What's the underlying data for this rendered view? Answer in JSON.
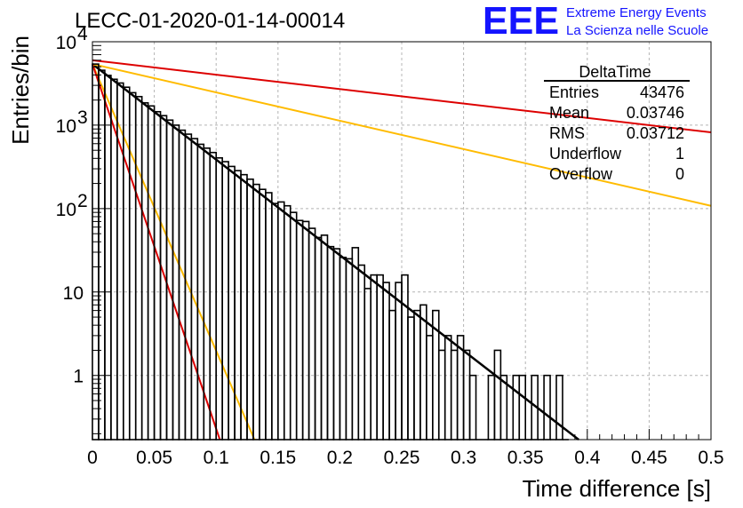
{
  "header": {
    "run_title": "LECC-01-2020-01-14-00014",
    "logo_text": "EEE",
    "logo_line1": "Extreme Energy Events",
    "logo_line2": "La Scienza nelle Scuole",
    "logo_color": "#1414ff"
  },
  "stats_box": {
    "title": "DeltaTime",
    "rows": [
      {
        "label": "Entries",
        "value": "43476"
      },
      {
        "label": "Mean",
        "value": "0.03746"
      },
      {
        "label": "RMS",
        "value": "0.03712"
      },
      {
        "label": "Underflow",
        "value": "1"
      },
      {
        "label": "Overflow",
        "value": "0"
      }
    ]
  },
  "chart_data": {
    "type": "histogram",
    "xlabel": "Time difference [s]",
    "ylabel": "Entries/bin",
    "xlim": [
      0,
      0.5
    ],
    "ylim": [
      0.17,
      10000
    ],
    "y_scale": "log",
    "grid": true,
    "x_ticks": [
      "0",
      "0.05",
      "0.1",
      "0.15",
      "0.2",
      "0.25",
      "0.3",
      "0.35",
      "0.4",
      "0.45",
      "0.5"
    ],
    "y_ticks": [
      {
        "value": 1,
        "label": "1"
      },
      {
        "value": 10,
        "label": "10"
      },
      {
        "value": 100,
        "label": "10",
        "exp": "2"
      },
      {
        "value": 1000,
        "label": "10",
        "exp": "3"
      },
      {
        "value": 10000,
        "label": "10",
        "exp": "4"
      }
    ],
    "bin_width": 0.005,
    "bins": [
      {
        "x": 0.0,
        "y": 5400
      },
      {
        "x": 0.005,
        "y": 4550
      },
      {
        "x": 0.01,
        "y": 3950
      },
      {
        "x": 0.015,
        "y": 3550
      },
      {
        "x": 0.02,
        "y": 3200
      },
      {
        "x": 0.025,
        "y": 2850
      },
      {
        "x": 0.03,
        "y": 2450
      },
      {
        "x": 0.035,
        "y": 2200
      },
      {
        "x": 0.04,
        "y": 1850
      },
      {
        "x": 0.045,
        "y": 1700
      },
      {
        "x": 0.05,
        "y": 1450
      },
      {
        "x": 0.055,
        "y": 1300
      },
      {
        "x": 0.06,
        "y": 1150
      },
      {
        "x": 0.065,
        "y": 1000
      },
      {
        "x": 0.07,
        "y": 870
      },
      {
        "x": 0.075,
        "y": 780
      },
      {
        "x": 0.08,
        "y": 690
      },
      {
        "x": 0.085,
        "y": 590
      },
      {
        "x": 0.09,
        "y": 530
      },
      {
        "x": 0.095,
        "y": 470
      },
      {
        "x": 0.1,
        "y": 405
      },
      {
        "x": 0.105,
        "y": 365
      },
      {
        "x": 0.11,
        "y": 320
      },
      {
        "x": 0.115,
        "y": 285
      },
      {
        "x": 0.12,
        "y": 255
      },
      {
        "x": 0.125,
        "y": 225
      },
      {
        "x": 0.13,
        "y": 195
      },
      {
        "x": 0.135,
        "y": 170
      },
      {
        "x": 0.14,
        "y": 155
      },
      {
        "x": 0.145,
        "y": 115
      },
      {
        "x": 0.15,
        "y": 120
      },
      {
        "x": 0.155,
        "y": 108
      },
      {
        "x": 0.16,
        "y": 90
      },
      {
        "x": 0.165,
        "y": 72
      },
      {
        "x": 0.17,
        "y": 70
      },
      {
        "x": 0.175,
        "y": 58
      },
      {
        "x": 0.18,
        "y": 45
      },
      {
        "x": 0.185,
        "y": 48
      },
      {
        "x": 0.19,
        "y": 35
      },
      {
        "x": 0.195,
        "y": 33
      },
      {
        "x": 0.2,
        "y": 26
      },
      {
        "x": 0.205,
        "y": 25
      },
      {
        "x": 0.21,
        "y": 34
      },
      {
        "x": 0.215,
        "y": 21
      },
      {
        "x": 0.22,
        "y": 11
      },
      {
        "x": 0.225,
        "y": 16
      },
      {
        "x": 0.23,
        "y": 16
      },
      {
        "x": 0.235,
        "y": 13
      },
      {
        "x": 0.24,
        "y": 6
      },
      {
        "x": 0.245,
        "y": 13
      },
      {
        "x": 0.25,
        "y": 16
      },
      {
        "x": 0.255,
        "y": 5
      },
      {
        "x": 0.26,
        "y": 6
      },
      {
        "x": 0.265,
        "y": 7
      },
      {
        "x": 0.27,
        "y": 3
      },
      {
        "x": 0.275,
        "y": 6
      },
      {
        "x": 0.28,
        "y": 2
      },
      {
        "x": 0.285,
        "y": 3
      },
      {
        "x": 0.29,
        "y": 2
      },
      {
        "x": 0.295,
        "y": 3
      },
      {
        "x": 0.3,
        "y": 2
      },
      {
        "x": 0.305,
        "y": 1
      },
      {
        "x": 0.31,
        "y": 0
      },
      {
        "x": 0.315,
        "y": 0
      },
      {
        "x": 0.32,
        "y": 1
      },
      {
        "x": 0.325,
        "y": 2
      },
      {
        "x": 0.33,
        "y": 1
      },
      {
        "x": 0.335,
        "y": 0
      },
      {
        "x": 0.34,
        "y": 1
      },
      {
        "x": 0.345,
        "y": 1
      },
      {
        "x": 0.35,
        "y": 0
      },
      {
        "x": 0.355,
        "y": 1
      },
      {
        "x": 0.36,
        "y": 0
      },
      {
        "x": 0.365,
        "y": 1
      },
      {
        "x": 0.37,
        "y": 0
      },
      {
        "x": 0.375,
        "y": 1
      },
      {
        "x": 0.38,
        "y": 0
      }
    ],
    "lines": [
      {
        "color": "#000000",
        "x": [
          0.0,
          0.393
        ],
        "y": [
          5400,
          0.17
        ]
      },
      {
        "color": "#dd0000",
        "x": [
          0.0,
          0.5
        ],
        "y": [
          6000,
          820
        ]
      },
      {
        "color": "#ffbb00",
        "x": [
          0.0,
          0.5
        ],
        "y": [
          5400,
          108
        ]
      },
      {
        "color": "#ffbb00",
        "x": [
          0.0,
          0.131
        ],
        "y": [
          5400,
          0.17
        ]
      },
      {
        "color": "#dd0000",
        "x": [
          0.0,
          0.103
        ],
        "y": [
          5400,
          0.17
        ]
      }
    ]
  }
}
